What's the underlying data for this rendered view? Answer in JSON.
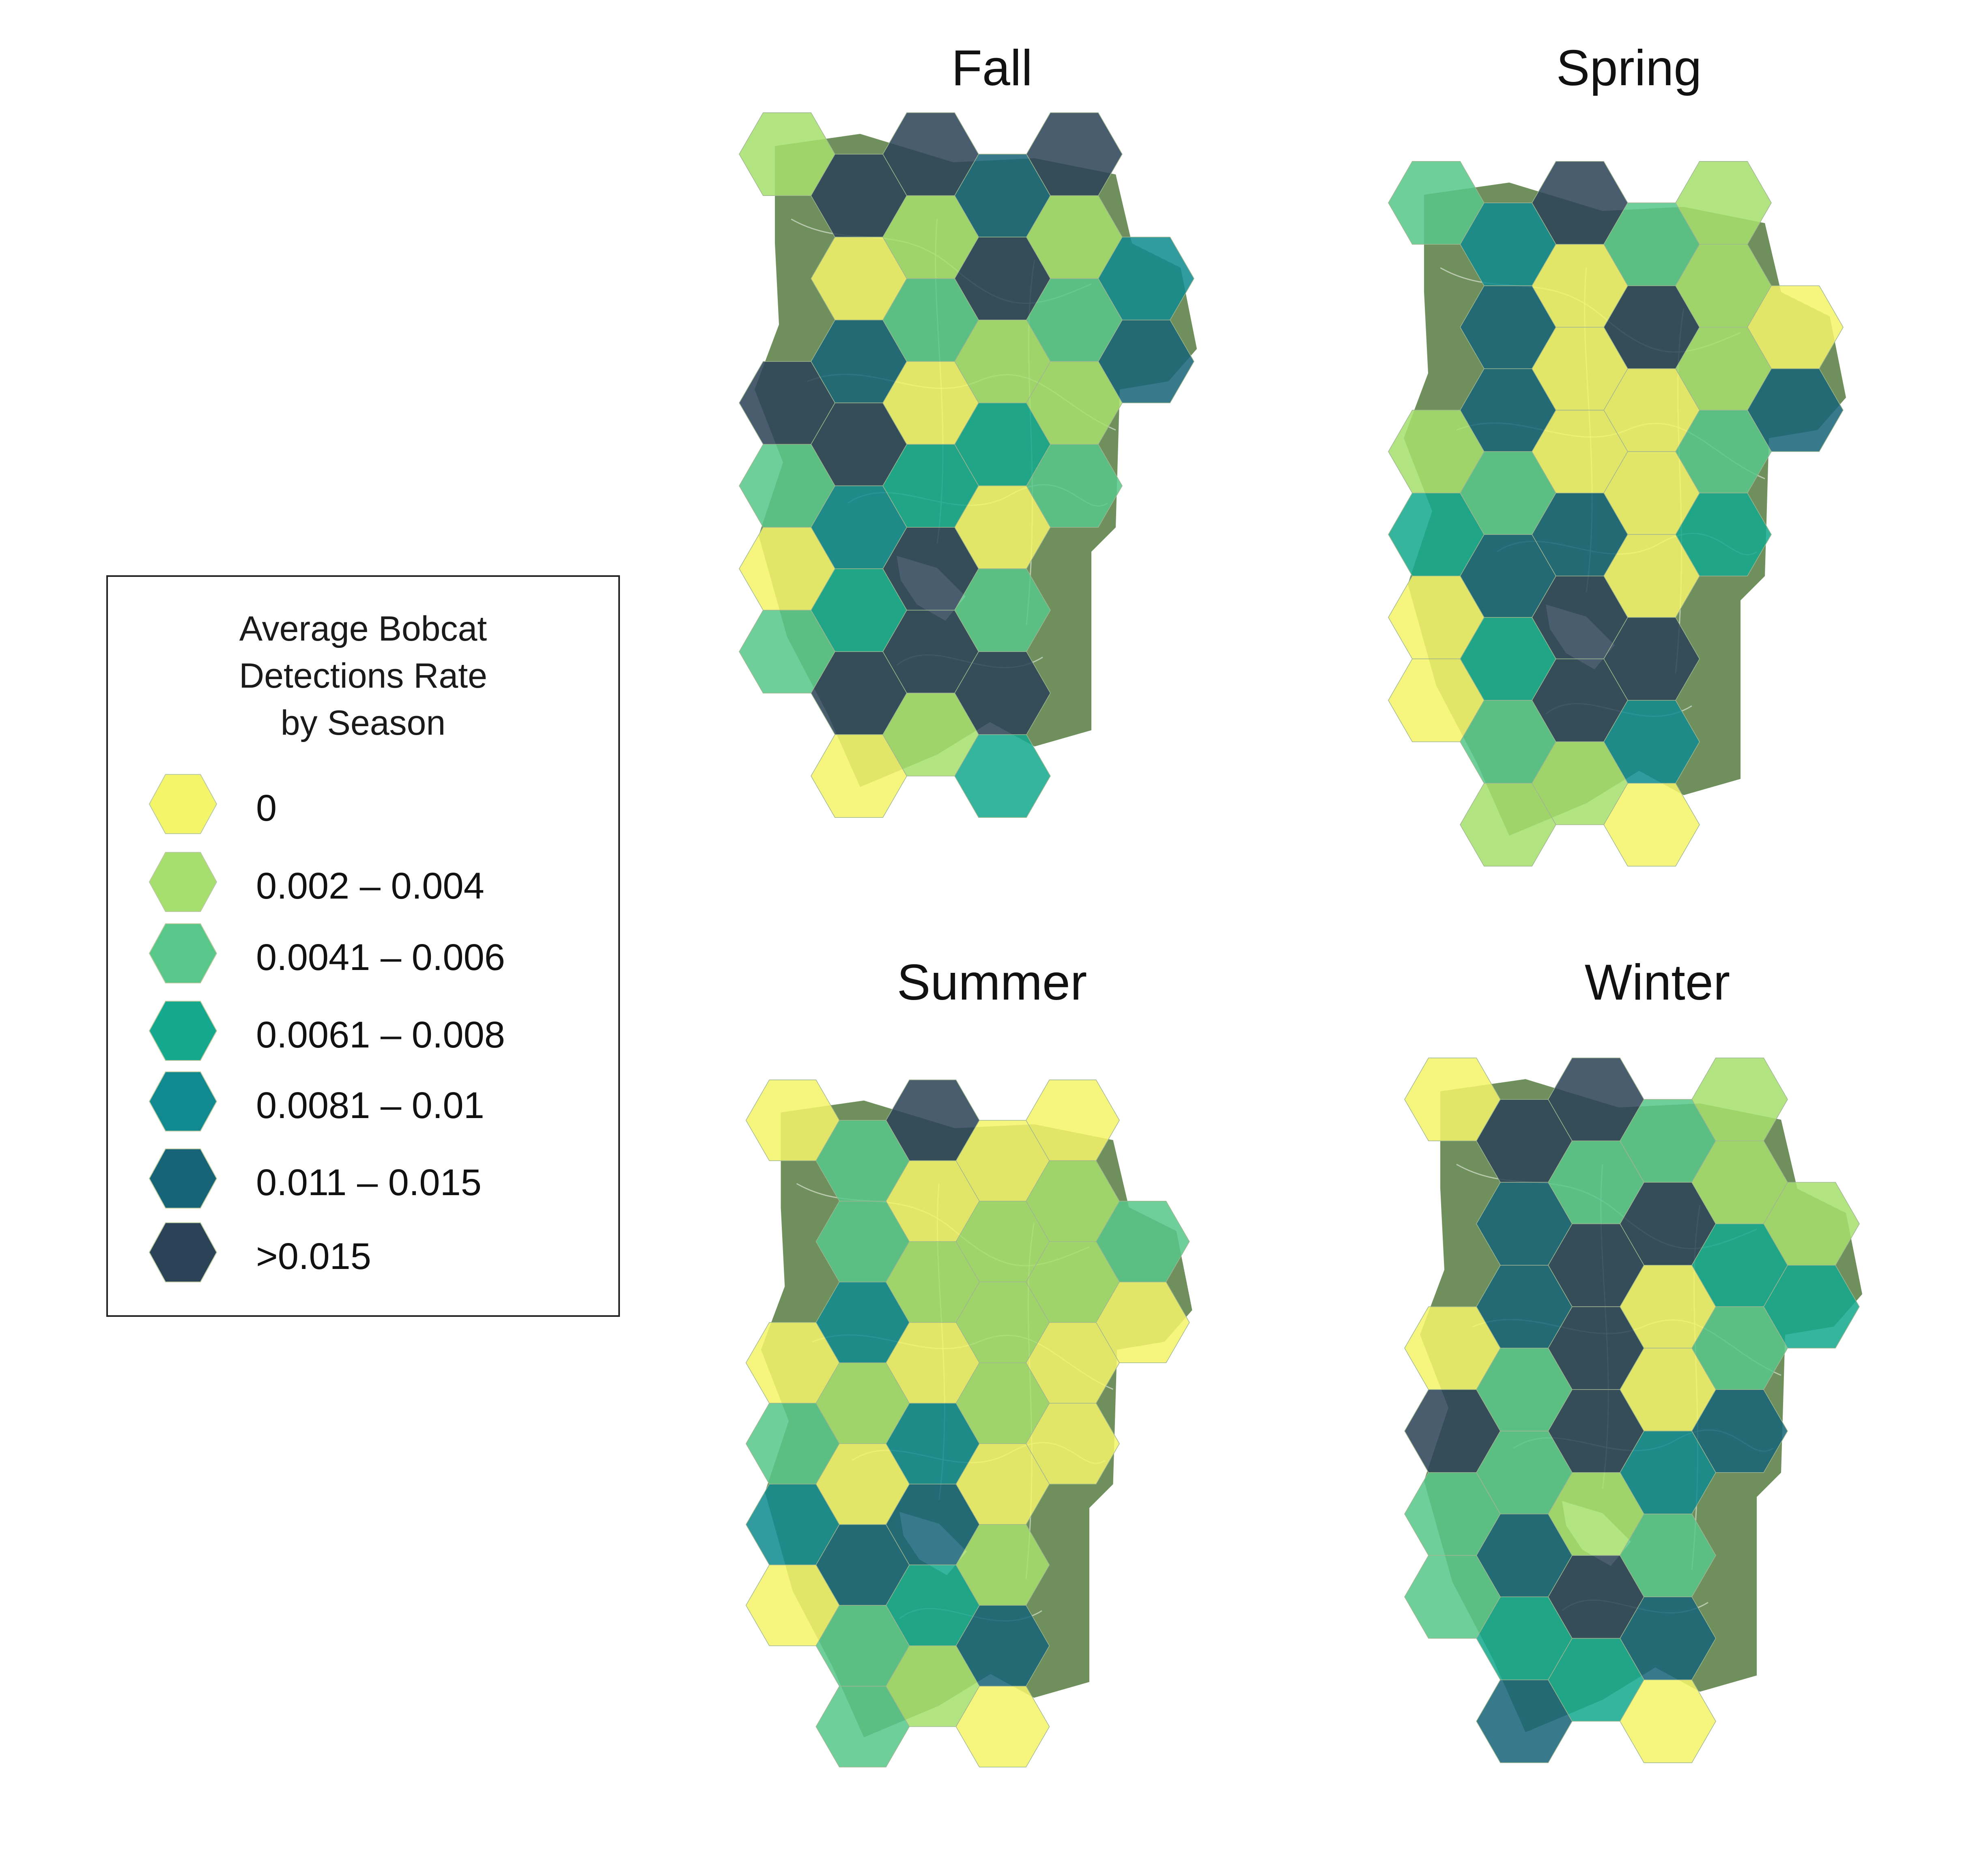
{
  "legend": {
    "title_lines": [
      "Average Bobcat",
      "Detections Rate",
      "by Season"
    ],
    "classes": [
      {
        "label": "0",
        "color": "#f5f56a"
      },
      {
        "label": "0.002 – 0.004",
        "color": "#a6df6e"
      },
      {
        "label": "0.0041 – 0.006",
        "color": "#57c78a"
      },
      {
        "label": "0.0061 – 0.008",
        "color": "#14a98e"
      },
      {
        "label": "0.0081 – 0.01",
        "color": "#108a90"
      },
      {
        "label": "0.011 – 0.015",
        "color": "#176478"
      },
      {
        "label": ">0.015",
        "color": "#2b4257"
      }
    ]
  },
  "map_style": {
    "land_color": "#6f8f5d",
    "road_color": "#e9f0e2",
    "hex_opacity": 0.86
  },
  "panels": [
    {
      "title": "Fall",
      "hex_classes": [
        [
          0,
          1
        ],
        [
          1,
          6
        ],
        [
          2,
          6
        ],
        [
          3,
          5
        ],
        [
          4,
          6
        ],
        [
          3,
          0
        ],
        [
          4,
          1
        ],
        [
          5,
          6
        ],
        [
          6,
          1
        ],
        [
          7,
          4
        ],
        [
          5,
          5
        ],
        [
          6,
          2
        ],
        [
          7,
          1
        ],
        [
          8,
          2
        ],
        [
          9,
          5
        ],
        [
          3,
          6
        ],
        [
          4,
          6
        ],
        [
          5,
          0
        ],
        [
          6,
          3
        ],
        [
          7,
          1
        ],
        [
          3,
          2
        ],
        [
          4,
          4
        ],
        [
          5,
          3
        ],
        [
          6,
          0
        ],
        [
          7,
          2
        ],
        [
          2,
          0
        ],
        [
          3,
          3
        ],
        [
          4,
          6
        ],
        [
          5,
          2
        ],
        [
          1,
          2
        ],
        [
          2,
          6
        ],
        [
          3,
          6
        ],
        [
          4,
          6
        ],
        [
          3,
          0
        ],
        [
          4,
          1
        ],
        [
          5,
          3
        ]
      ]
    },
    {
      "title": "Spring",
      "hex_classes": [
        [
          0,
          2
        ],
        [
          1,
          4
        ],
        [
          2,
          6
        ],
        [
          3,
          2
        ],
        [
          4,
          1
        ],
        [
          3,
          5
        ],
        [
          4,
          0
        ],
        [
          5,
          6
        ],
        [
          6,
          1
        ],
        [
          7,
          0
        ],
        [
          5,
          5
        ],
        [
          6,
          0
        ],
        [
          7,
          0
        ],
        [
          8,
          1
        ],
        [
          9,
          5
        ],
        [
          3,
          1
        ],
        [
          4,
          2
        ],
        [
          5,
          0
        ],
        [
          6,
          0
        ],
        [
          7,
          2
        ],
        [
          3,
          3
        ],
        [
          4,
          5
        ],
        [
          5,
          5
        ],
        [
          6,
          0
        ],
        [
          7,
          3
        ],
        [
          2,
          0
        ],
        [
          3,
          3
        ],
        [
          4,
          6
        ],
        [
          5,
          6
        ],
        [
          1,
          0
        ],
        [
          2,
          2
        ],
        [
          3,
          6
        ],
        [
          4,
          4
        ],
        [
          3,
          1
        ],
        [
          4,
          1
        ],
        [
          5,
          0
        ]
      ]
    },
    {
      "title": "Summer",
      "hex_classes": [
        [
          0,
          0
        ],
        [
          1,
          2
        ],
        [
          2,
          6
        ],
        [
          3,
          0
        ],
        [
          4,
          0
        ],
        [
          3,
          2
        ],
        [
          4,
          0
        ],
        [
          5,
          1
        ],
        [
          6,
          1
        ],
        [
          7,
          2
        ],
        [
          5,
          4
        ],
        [
          6,
          1
        ],
        [
          7,
          1
        ],
        [
          8,
          1
        ],
        [
          9,
          0
        ],
        [
          3,
          0
        ],
        [
          4,
          1
        ],
        [
          5,
          0
        ],
        [
          6,
          1
        ],
        [
          7,
          0
        ],
        [
          3,
          2
        ],
        [
          4,
          0
        ],
        [
          5,
          4
        ],
        [
          6,
          0
        ],
        [
          7,
          0
        ],
        [
          2,
          4
        ],
        [
          3,
          5
        ],
        [
          4,
          5
        ],
        [
          5,
          1
        ],
        [
          1,
          0
        ],
        [
          2,
          2
        ],
        [
          3,
          3
        ],
        [
          4,
          5
        ],
        [
          3,
          2
        ],
        [
          4,
          1
        ],
        [
          5,
          0
        ]
      ]
    },
    {
      "title": "Winter",
      "hex_classes": [
        [
          0,
          0
        ],
        [
          1,
          6
        ],
        [
          2,
          6
        ],
        [
          3,
          2
        ],
        [
          4,
          1
        ],
        [
          3,
          5
        ],
        [
          4,
          2
        ],
        [
          5,
          6
        ],
        [
          6,
          1
        ],
        [
          7,
          1
        ],
        [
          5,
          5
        ],
        [
          6,
          6
        ],
        [
          7,
          0
        ],
        [
          8,
          3
        ],
        [
          9,
          3
        ],
        [
          3,
          0
        ],
        [
          4,
          2
        ],
        [
          5,
          6
        ],
        [
          6,
          0
        ],
        [
          7,
          2
        ],
        [
          3,
          6
        ],
        [
          4,
          2
        ],
        [
          5,
          6
        ],
        [
          6,
          4
        ],
        [
          7,
          5
        ],
        [
          2,
          2
        ],
        [
          3,
          5
        ],
        [
          4,
          1
        ],
        [
          5,
          2
        ],
        [
          1,
          2
        ],
        [
          2,
          3
        ],
        [
          3,
          6
        ],
        [
          4,
          5
        ],
        [
          3,
          5
        ],
        [
          4,
          3
        ],
        [
          5,
          0
        ]
      ]
    }
  ]
}
